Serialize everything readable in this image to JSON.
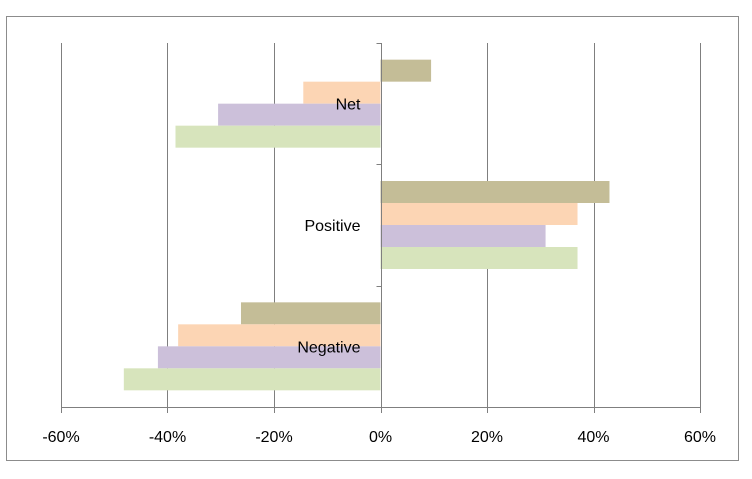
{
  "chart_data": {
    "type": "bar",
    "orientation": "horizontal",
    "title": "",
    "xlabel": "",
    "ylabel": "",
    "xlim": [
      -0.6,
      0.6
    ],
    "grid": true,
    "legend": "none",
    "x_ticks": [
      -0.6,
      -0.4,
      -0.2,
      0,
      0.2,
      0.4,
      0.6
    ],
    "x_tick_labels": [
      "-60%",
      "-40%",
      "-20%",
      "0%",
      "20%",
      "40%",
      "60%"
    ],
    "categories": [
      "Net",
      "Positive",
      "Negative"
    ],
    "series": [
      {
        "color": "#c4bd97",
        "values": [
          0.095,
          0.43,
          -0.262
        ]
      },
      {
        "color": "#fcd5b4",
        "values": [
          -0.145,
          0.37,
          -0.38
        ]
      },
      {
        "color": "#ccc0da",
        "values": [
          -0.305,
          0.31,
          -0.418
        ]
      },
      {
        "color": "#d7e4bc",
        "values": [
          -0.385,
          0.37,
          -0.482
        ]
      }
    ]
  }
}
